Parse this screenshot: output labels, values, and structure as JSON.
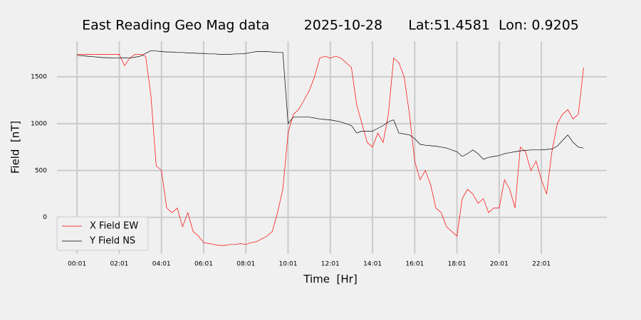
{
  "chart_data": {
    "type": "line",
    "title": "East Reading Geo Mag data        2025-10-28      Lat:51.4581  Lon: 0.9205",
    "xlabel": "Time  [Hr]",
    "ylabel": "Field  [nT]",
    "x": [
      0,
      0.25,
      0.5,
      0.75,
      1,
      1.25,
      1.5,
      1.75,
      2,
      2.25,
      2.5,
      2.75,
      3,
      3.25,
      3.5,
      3.75,
      4,
      4.25,
      4.5,
      4.75,
      5,
      5.25,
      5.5,
      5.75,
      6,
      6.25,
      6.5,
      6.75,
      7,
      7.25,
      7.5,
      7.75,
      8,
      8.25,
      8.5,
      8.75,
      9,
      9.25,
      9.5,
      9.75,
      10,
      10.25,
      10.5,
      10.75,
      11,
      11.25,
      11.5,
      11.75,
      12,
      12.25,
      12.5,
      12.75,
      13,
      13.25,
      13.5,
      13.75,
      14,
      14.25,
      14.5,
      14.75,
      15,
      15.25,
      15.5,
      15.75,
      16,
      16.25,
      16.5,
      16.75,
      17,
      17.25,
      17.5,
      17.75,
      18,
      18.25,
      18.5,
      18.75,
      19,
      19.25,
      19.5,
      19.75,
      20,
      20.25,
      20.5,
      20.75,
      21,
      21.25,
      21.5,
      21.75,
      22,
      22.25,
      22.5,
      22.75,
      23,
      23.25,
      23.5,
      23.75,
      24
    ],
    "series": [
      {
        "name": "X Field EW",
        "color": "#ff0000",
        "values": [
          1740,
          1740,
          1740,
          1740,
          1740,
          1740,
          1740,
          1740,
          1740,
          1620,
          1700,
          1740,
          1740,
          1720,
          1300,
          550,
          500,
          100,
          50,
          100,
          -100,
          50,
          -150,
          -200,
          -270,
          -280,
          -290,
          -300,
          -300,
          -290,
          -290,
          -280,
          -290,
          -270,
          -260,
          -230,
          -200,
          -150,
          50,
          300,
          900,
          1100,
          1150,
          1250,
          1350,
          1500,
          1700,
          1720,
          1700,
          1720,
          1700,
          1650,
          1600,
          1200,
          1000,
          800,
          750,
          900,
          800,
          1100,
          1700,
          1650,
          1500,
          1100,
          600,
          400,
          500,
          350,
          100,
          50,
          -100,
          -150,
          -200,
          200,
          300,
          250,
          150,
          200,
          50,
          100,
          100,
          400,
          300,
          100,
          750,
          700,
          500,
          600,
          400,
          250,
          700,
          1000,
          1100,
          1150,
          1050,
          1100,
          1600
        ]
      },
      {
        "name": "Y Field NS",
        "color": "#000000",
        "values": [
          1730,
          1725,
          1720,
          1715,
          1710,
          1705,
          1705,
          1700,
          1700,
          1705,
          1700,
          1710,
          1720,
          1750,
          1780,
          1775,
          1770,
          1765,
          1765,
          1760,
          1760,
          1755,
          1755,
          1750,
          1750,
          1745,
          1745,
          1740,
          1740,
          1740,
          1745,
          1745,
          1750,
          1760,
          1770,
          1770,
          1770,
          1765,
          1760,
          1760,
          1000,
          1070,
          1070,
          1070,
          1070,
          1060,
          1050,
          1045,
          1040,
          1030,
          1020,
          1000,
          980,
          900,
          920,
          920,
          920,
          950,
          980,
          1020,
          1040,
          900,
          890,
          880,
          840,
          780,
          770,
          765,
          760,
          750,
          740,
          720,
          700,
          650,
          680,
          720,
          680,
          620,
          640,
          650,
          660,
          680,
          690,
          700,
          710,
          715,
          720,
          720,
          720,
          725,
          730,
          760,
          820,
          880,
          800,
          750,
          740
        ]
      }
    ],
    "xlim": [
      -0.95,
      25.1
    ],
    "xticks": [
      {
        "value": 0,
        "label": "00:01"
      },
      {
        "value": 2,
        "label": "02:01"
      },
      {
        "value": 4,
        "label": "04:01"
      },
      {
        "value": 6,
        "label": "06:01"
      },
      {
        "value": 8,
        "label": "08:01"
      },
      {
        "value": 10,
        "label": "10:01"
      },
      {
        "value": 12,
        "label": "12:01"
      },
      {
        "value": 14,
        "label": "14:01"
      },
      {
        "value": 16,
        "label": "16:01"
      },
      {
        "value": 18,
        "label": "18:01"
      },
      {
        "value": 20,
        "label": "20:01"
      },
      {
        "value": 22,
        "label": "22:01"
      }
    ],
    "ylim": [
      -390,
      1880
    ],
    "yticks": [
      0,
      500,
      1000,
      1500
    ],
    "grid": true,
    "legend": "lower left"
  }
}
